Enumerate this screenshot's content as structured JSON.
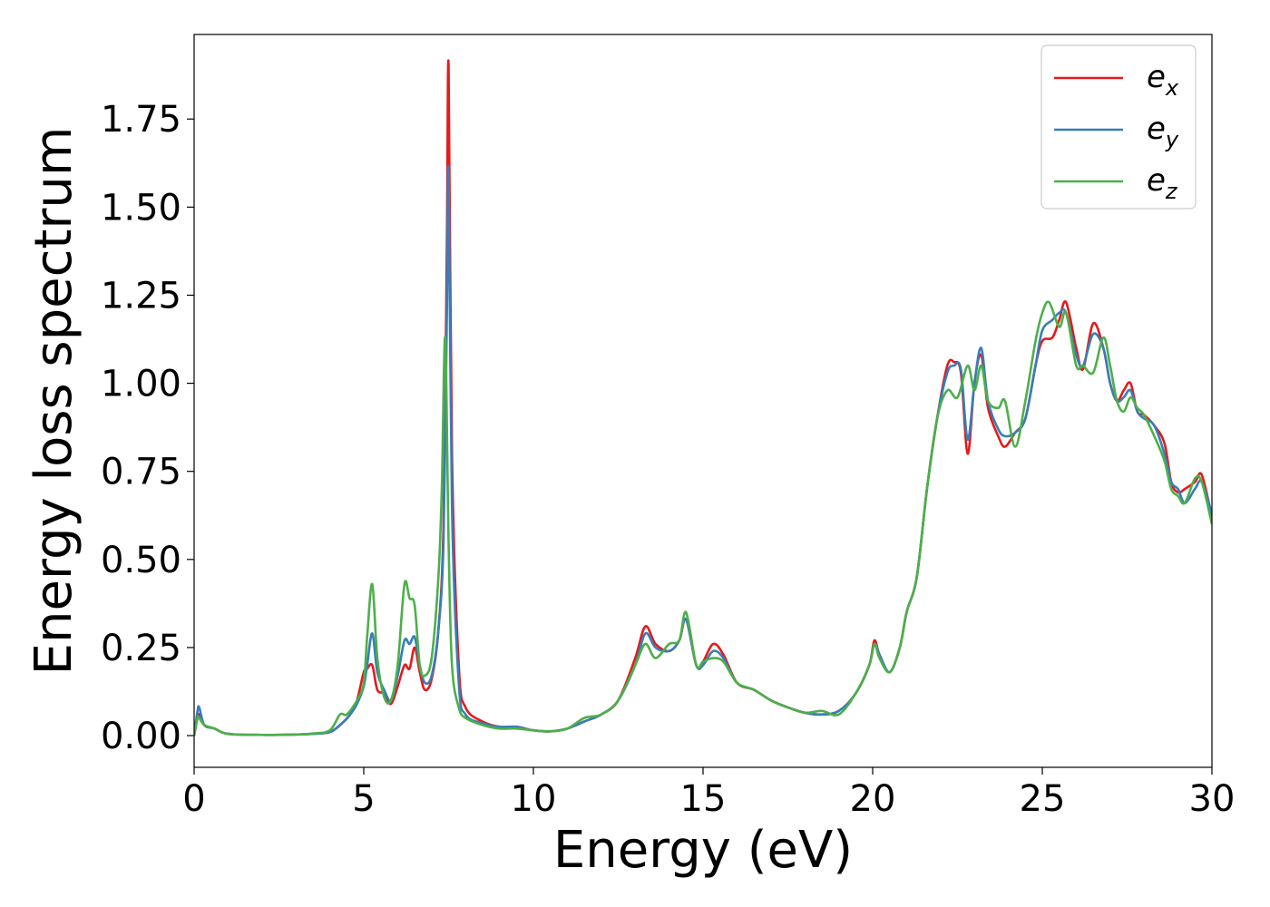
{
  "chart_data": {
    "type": "line",
    "title": "",
    "xlabel": "Energy (eV)",
    "ylabel": "Energy loss spectrum",
    "xlim": [
      0,
      30
    ],
    "ylim": [
      -0.09,
      1.99
    ],
    "xticks": [
      0,
      5,
      10,
      15,
      20,
      25,
      30
    ],
    "xtick_labels": [
      "0",
      "5",
      "10",
      "15",
      "20",
      "25",
      "30"
    ],
    "yticks": [
      0.0,
      0.25,
      0.5,
      0.75,
      1.0,
      1.25,
      1.5,
      1.75
    ],
    "ytick_labels": [
      "0.00",
      "0.25",
      "0.50",
      "0.75",
      "1.00",
      "1.25",
      "1.50",
      "1.75"
    ],
    "grid": false,
    "legend_position": "top-right",
    "series": [
      {
        "name": "e_x",
        "label_base": "e",
        "label_sub": "x",
        "color": "#e41a1c",
        "x": [
          0,
          0.1,
          0.15,
          0.3,
          0.6,
          1.0,
          2.0,
          3.0,
          3.5,
          4.0,
          4.3,
          4.6,
          4.8,
          5.0,
          5.1,
          5.25,
          5.4,
          5.6,
          5.8,
          6.0,
          6.2,
          6.35,
          6.5,
          6.65,
          6.8,
          7.0,
          7.2,
          7.35,
          7.45,
          7.5,
          7.6,
          7.8,
          8.0,
          8.5,
          9.0,
          9.5,
          10.0,
          10.5,
          11.0,
          11.5,
          12.0,
          12.5,
          13.0,
          13.3,
          13.6,
          14.0,
          14.3,
          14.5,
          14.8,
          15.0,
          15.3,
          15.6,
          16.0,
          16.5,
          17.0,
          17.5,
          18.0,
          18.5,
          19.0,
          19.5,
          19.9,
          20.05,
          20.2,
          20.5,
          20.8,
          21.0,
          21.3,
          21.6,
          21.9,
          22.2,
          22.4,
          22.6,
          22.8,
          23.0,
          23.2,
          23.4,
          23.7,
          23.9,
          24.2,
          24.5,
          24.8,
          25.0,
          25.3,
          25.5,
          25.7,
          26.0,
          26.2,
          26.5,
          26.8,
          27.0,
          27.2,
          27.4,
          27.6,
          27.8,
          28.0,
          28.3,
          28.6,
          28.8,
          29.0,
          29.2,
          29.5,
          29.7,
          30.0
        ],
        "y": [
          0.0,
          0.05,
          0.06,
          0.03,
          0.02,
          0.005,
          0.002,
          0.003,
          0.005,
          0.01,
          0.03,
          0.06,
          0.1,
          0.18,
          0.19,
          0.2,
          0.13,
          0.12,
          0.09,
          0.14,
          0.2,
          0.19,
          0.25,
          0.18,
          0.13,
          0.16,
          0.3,
          0.6,
          1.4,
          1.9,
          0.8,
          0.2,
          0.08,
          0.04,
          0.025,
          0.025,
          0.015,
          0.012,
          0.02,
          0.04,
          0.06,
          0.1,
          0.22,
          0.31,
          0.26,
          0.24,
          0.27,
          0.33,
          0.2,
          0.21,
          0.26,
          0.23,
          0.15,
          0.13,
          0.1,
          0.08,
          0.065,
          0.06,
          0.07,
          0.12,
          0.2,
          0.27,
          0.23,
          0.18,
          0.25,
          0.35,
          0.45,
          0.7,
          0.9,
          1.05,
          1.06,
          1.03,
          0.8,
          1.0,
          1.08,
          0.93,
          0.85,
          0.82,
          0.86,
          0.9,
          1.05,
          1.12,
          1.13,
          1.18,
          1.23,
          1.1,
          1.04,
          1.17,
          1.1,
          1.0,
          0.95,
          0.98,
          1.0,
          0.92,
          0.91,
          0.88,
          0.83,
          0.72,
          0.69,
          0.7,
          0.72,
          0.74,
          0.62
        ]
      },
      {
        "name": "e_y",
        "label_base": "e",
        "label_sub": "y",
        "color": "#377eb8",
        "x": [
          0,
          0.1,
          0.15,
          0.3,
          0.6,
          1.0,
          2.0,
          3.0,
          3.5,
          4.0,
          4.3,
          4.6,
          4.8,
          5.0,
          5.1,
          5.25,
          5.4,
          5.6,
          5.8,
          6.0,
          6.2,
          6.35,
          6.5,
          6.65,
          6.8,
          7.0,
          7.2,
          7.35,
          7.45,
          7.5,
          7.6,
          7.8,
          8.0,
          8.5,
          9.0,
          9.5,
          10.0,
          10.5,
          11.0,
          11.5,
          12.0,
          12.5,
          13.0,
          13.3,
          13.6,
          14.0,
          14.3,
          14.5,
          14.8,
          15.0,
          15.3,
          15.6,
          16.0,
          16.5,
          17.0,
          17.5,
          18.0,
          18.5,
          19.0,
          19.5,
          19.9,
          20.05,
          20.2,
          20.5,
          20.8,
          21.0,
          21.3,
          21.6,
          21.9,
          22.2,
          22.4,
          22.6,
          22.8,
          23.0,
          23.2,
          23.4,
          23.7,
          23.9,
          24.2,
          24.5,
          24.8,
          25.0,
          25.3,
          25.5,
          25.7,
          26.0,
          26.2,
          26.5,
          26.8,
          27.0,
          27.2,
          27.4,
          27.6,
          27.8,
          28.0,
          28.3,
          28.6,
          28.8,
          29.0,
          29.2,
          29.5,
          29.7,
          30.0
        ],
        "y": [
          0.0,
          0.07,
          0.08,
          0.03,
          0.02,
          0.005,
          0.002,
          0.003,
          0.005,
          0.01,
          0.03,
          0.06,
          0.09,
          0.14,
          0.2,
          0.29,
          0.18,
          0.13,
          0.1,
          0.17,
          0.27,
          0.26,
          0.28,
          0.2,
          0.15,
          0.17,
          0.3,
          0.55,
          1.2,
          1.6,
          0.65,
          0.15,
          0.06,
          0.035,
          0.025,
          0.025,
          0.015,
          0.012,
          0.02,
          0.04,
          0.06,
          0.1,
          0.2,
          0.29,
          0.25,
          0.24,
          0.27,
          0.33,
          0.2,
          0.2,
          0.24,
          0.22,
          0.15,
          0.13,
          0.1,
          0.08,
          0.065,
          0.06,
          0.07,
          0.12,
          0.2,
          0.26,
          0.23,
          0.18,
          0.25,
          0.35,
          0.45,
          0.7,
          0.9,
          1.03,
          1.05,
          1.04,
          0.84,
          1.0,
          1.1,
          0.95,
          0.87,
          0.85,
          0.86,
          0.9,
          1.05,
          1.15,
          1.18,
          1.2,
          1.2,
          1.08,
          1.05,
          1.14,
          1.1,
          1.0,
          0.95,
          0.96,
          0.98,
          0.92,
          0.9,
          0.88,
          0.8,
          0.72,
          0.7,
          0.66,
          0.7,
          0.72,
          0.63
        ]
      },
      {
        "name": "e_z",
        "label_base": "e",
        "label_sub": "z",
        "color": "#4daf4a",
        "x": [
          0,
          0.1,
          0.15,
          0.3,
          0.6,
          1.0,
          2.0,
          3.0,
          3.5,
          4.0,
          4.3,
          4.5,
          4.8,
          5.0,
          5.1,
          5.25,
          5.4,
          5.6,
          5.8,
          6.0,
          6.2,
          6.35,
          6.5,
          6.65,
          6.8,
          7.0,
          7.2,
          7.3,
          7.4,
          7.5,
          7.6,
          7.8,
          8.0,
          8.5,
          9.0,
          9.5,
          10.0,
          10.5,
          11.0,
          11.5,
          12.0,
          12.5,
          13.0,
          13.3,
          13.6,
          14.0,
          14.3,
          14.5,
          14.8,
          15.0,
          15.3,
          15.6,
          16.0,
          16.5,
          17.0,
          17.5,
          18.0,
          18.5,
          19.0,
          19.5,
          19.9,
          20.05,
          20.2,
          20.5,
          20.8,
          21.0,
          21.3,
          21.6,
          21.9,
          22.2,
          22.5,
          22.8,
          23.0,
          23.2,
          23.4,
          23.7,
          23.9,
          24.2,
          24.5,
          24.8,
          25.0,
          25.2,
          25.5,
          25.7,
          26.0,
          26.2,
          26.5,
          26.8,
          27.0,
          27.2,
          27.4,
          27.6,
          27.8,
          28.0,
          28.3,
          28.6,
          28.8,
          29.0,
          29.2,
          29.5,
          29.7,
          30.0
        ],
        "y": [
          0.0,
          0.05,
          0.05,
          0.03,
          0.02,
          0.005,
          0.002,
          0.003,
          0.006,
          0.015,
          0.06,
          0.06,
          0.1,
          0.15,
          0.28,
          0.43,
          0.22,
          0.11,
          0.1,
          0.2,
          0.43,
          0.39,
          0.37,
          0.2,
          0.17,
          0.22,
          0.45,
          0.7,
          1.13,
          0.55,
          0.2,
          0.08,
          0.05,
          0.03,
          0.02,
          0.02,
          0.015,
          0.012,
          0.02,
          0.05,
          0.06,
          0.1,
          0.2,
          0.26,
          0.22,
          0.26,
          0.27,
          0.35,
          0.2,
          0.21,
          0.22,
          0.21,
          0.15,
          0.13,
          0.1,
          0.08,
          0.065,
          0.07,
          0.06,
          0.12,
          0.2,
          0.26,
          0.22,
          0.18,
          0.25,
          0.35,
          0.45,
          0.7,
          0.9,
          0.98,
          0.96,
          1.05,
          0.98,
          1.05,
          0.95,
          0.93,
          0.95,
          0.82,
          0.95,
          1.12,
          1.2,
          1.23,
          1.16,
          1.2,
          1.05,
          1.05,
          1.03,
          1.13,
          1.05,
          0.95,
          0.92,
          0.96,
          0.93,
          0.91,
          0.85,
          0.78,
          0.7,
          0.68,
          0.66,
          0.73,
          0.72,
          0.6
        ]
      }
    ]
  }
}
